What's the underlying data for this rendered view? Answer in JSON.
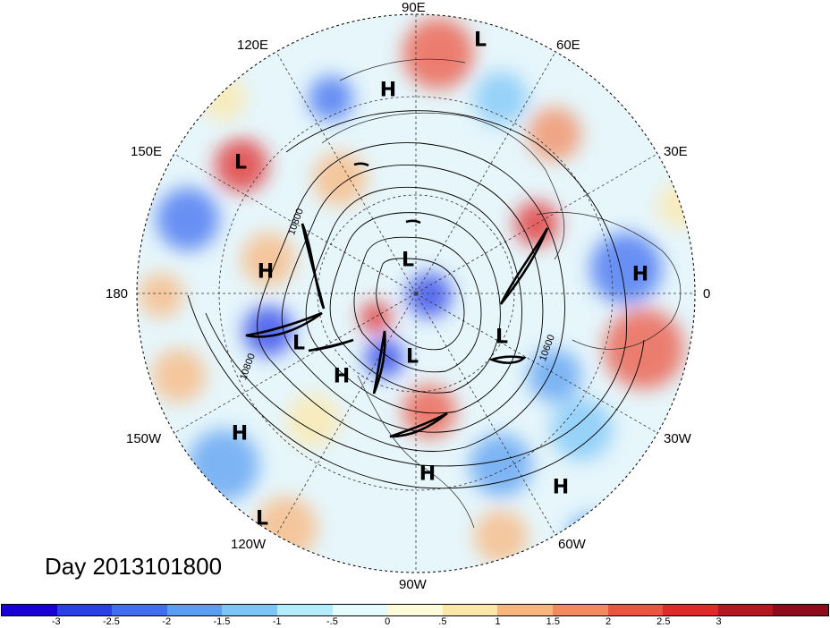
{
  "title": "Day 2013101800",
  "longitude_labels": [
    {
      "key": "90E",
      "text": "90E"
    },
    {
      "key": "60E",
      "text": "60E"
    },
    {
      "key": "120E",
      "text": "120E"
    },
    {
      "key": "30E",
      "text": "30E"
    },
    {
      "key": "150E",
      "text": "150E"
    },
    {
      "key": "0",
      "text": "0"
    },
    {
      "key": "180",
      "text": "180"
    },
    {
      "key": "30W",
      "text": "30W"
    },
    {
      "key": "150W",
      "text": "150W"
    },
    {
      "key": "60W",
      "text": "60W"
    },
    {
      "key": "120W",
      "text": "120W"
    },
    {
      "key": "90W",
      "text": "90W"
    }
  ],
  "pressure_centers": [
    {
      "type": "L"
    },
    {
      "type": "H"
    },
    {
      "type": "L"
    },
    {
      "type": "H"
    },
    {
      "type": "L"
    },
    {
      "type": "H"
    },
    {
      "type": "L"
    },
    {
      "type": "L"
    },
    {
      "type": "H"
    },
    {
      "type": "L"
    },
    {
      "type": "H"
    },
    {
      "type": "H"
    },
    {
      "type": "H"
    },
    {
      "type": "L"
    }
  ],
  "contour_labels": [
    "10800",
    "10800",
    "10600"
  ],
  "colorbar": {
    "colors": [
      "#1a00d8",
      "#2a3fe8",
      "#3f6ef0",
      "#5a9ef2",
      "#7cc6f7",
      "#b4ecfb",
      "#e6fbfd",
      "#fdfbd9",
      "#fde7a8",
      "#f9b67c",
      "#f38a5e",
      "#ec5440",
      "#e02a2a",
      "#b5161f",
      "#8e0b1c"
    ],
    "ticks": [
      "-3",
      "-2.5",
      "-2",
      "-1.5",
      "-1",
      "-.5",
      "0",
      ".5",
      "1",
      "1.5",
      "2",
      "2.5",
      "3"
    ]
  }
}
